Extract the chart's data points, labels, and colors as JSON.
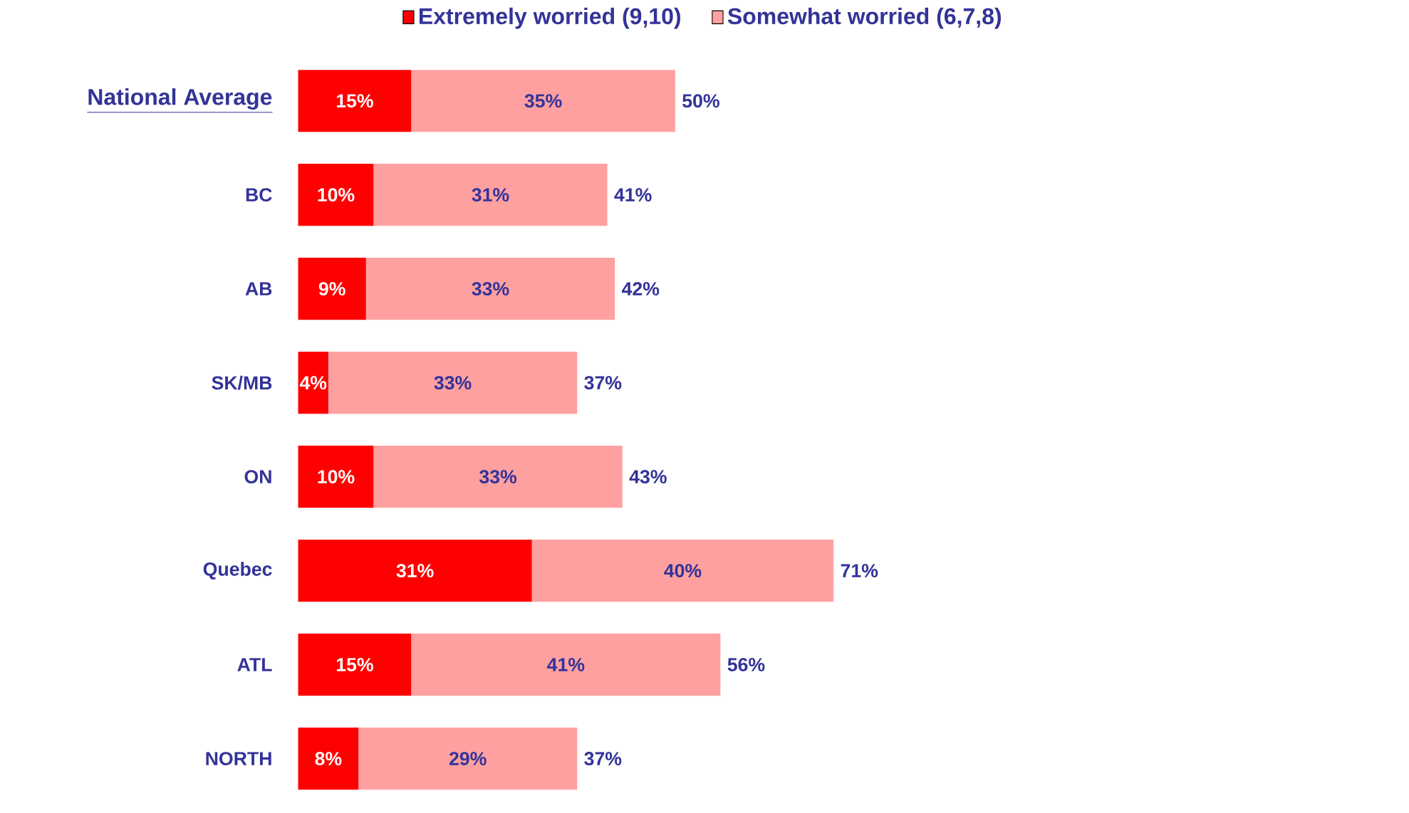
{
  "chart_data": {
    "type": "bar",
    "orientation": "horizontal",
    "stacked": true,
    "categories": [
      "National Average",
      "BC",
      "AB",
      "SK/MB",
      "ON",
      "Quebec",
      "ATL",
      "NORTH"
    ],
    "series": [
      {
        "name": "Extremely worried (9,10)",
        "color": "#ff0000",
        "values": [
          15,
          10,
          9,
          4,
          10,
          31,
          15,
          8
        ],
        "value_labels": [
          "15%",
          "10%",
          "9%",
          "4%",
          "10%",
          "31%",
          "15%",
          "8%"
        ]
      },
      {
        "name": "Somewhat worried (6,7,8)",
        "color": "#ffa0a0",
        "values": [
          35,
          31,
          33,
          33,
          33,
          40,
          41,
          29
        ],
        "value_labels": [
          "35%",
          "31%",
          "33%",
          "33%",
          "33%",
          "40%",
          "41%",
          "29%"
        ]
      }
    ],
    "totals": [
      "50%",
      "41%",
      "42%",
      "37%",
      "43%",
      "71%",
      "56%",
      "37%"
    ],
    "legend": "top",
    "tick_labels": "y"
  }
}
